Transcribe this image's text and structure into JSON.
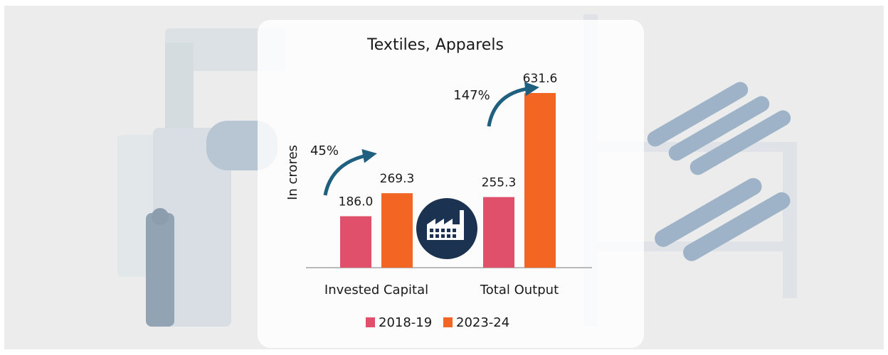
{
  "chart_data": {
    "type": "bar",
    "title": "Textiles, Apparels",
    "y_label": "In crores",
    "categories": [
      "Invested Capital",
      "Total Output"
    ],
    "series": [
      {
        "name": "2018-19",
        "color": "#e0506a",
        "values": [
          186.0,
          255.3
        ],
        "value_labels": [
          "186.0",
          "255.3"
        ]
      },
      {
        "name": "2023-24",
        "color": "#f26522",
        "values": [
          269.3,
          631.6
        ],
        "value_labels": [
          "269.3",
          "631.6"
        ]
      }
    ],
    "annotations": [
      "45%",
      "147%"
    ]
  }
}
